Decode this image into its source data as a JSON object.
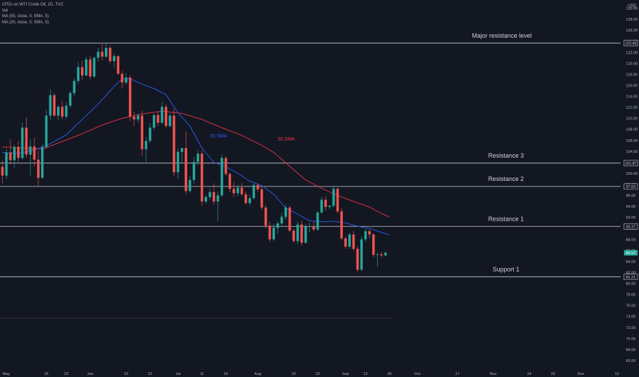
{
  "legend": {
    "symbol": "CFDs on WTI Crude Oil, 1D, TVC",
    "volume": "Vol",
    "ma50": "MA (50, close, 0, SMA, 5)",
    "ma20": "MA (20, close, 0, SMA, 5)"
  },
  "colors": {
    "background": "#131722",
    "up": "#26a69a",
    "down": "#ef5350",
    "sma20": "#2962ff",
    "sma50": "#f23645",
    "level_line": "#d1d4dc",
    "text": "#d1d4dc"
  },
  "chart_data": {
    "type": "candlestick",
    "currency_label": "USD",
    "y_ticks": [
      66,
      68,
      70,
      72,
      74,
      76,
      78,
      80,
      82,
      84,
      86,
      88,
      90,
      92,
      94,
      96,
      98,
      100,
      102,
      104,
      106,
      108,
      110,
      112,
      114,
      116,
      118,
      120,
      122,
      124,
      126,
      128,
      130
    ],
    "y_tick_labels": [
      "66.00",
      "68.00",
      "70.00",
      "72.00",
      "74.00",
      "76.00",
      "78.00",
      "80.00",
      "82.00",
      "84.00",
      "86.00",
      "88.00",
      "90.00",
      "92.00",
      "94.00",
      "96.00",
      "98.00",
      "100.00",
      "102.00",
      "104.00",
      "106.00",
      "108.00",
      "110.00",
      "112.00",
      "114.00",
      "116.00",
      "118.00",
      "120.00",
      "122.00",
      "124.00",
      "126.00",
      "128.00",
      "130.00"
    ],
    "ylim": [
      64.5,
      131.5
    ],
    "x_tick_labels": [
      "May",
      "16",
      "23",
      "Jun",
      "13",
      "21",
      "Jul",
      "11",
      "19",
      "Aug",
      "15",
      "23",
      "Sep",
      "12",
      "20",
      "Oct",
      "17",
      "Nov",
      "14",
      "22",
      "Dec",
      "12"
    ],
    "x_tick_index": [
      1,
      11,
      16,
      22,
      31,
      37,
      44,
      50,
      56,
      64,
      73,
      79,
      86,
      91,
      97,
      104,
      114,
      123,
      132,
      138,
      145,
      154
    ],
    "last_bar_index": 97,
    "candles": [
      [
        101.2,
        102.3,
        98.2,
        99.6
      ],
      [
        99.6,
        104.5,
        99.0,
        103.8
      ],
      [
        103.8,
        106.2,
        101.6,
        102.4
      ],
      [
        102.4,
        105.2,
        101.0,
        104.8
      ],
      [
        104.8,
        105.9,
        102.1,
        102.8
      ],
      [
        102.8,
        109.2,
        102.5,
        108.3
      ],
      [
        108.3,
        110.2,
        102.8,
        103.4
      ],
      [
        103.4,
        106.2,
        99.6,
        104.9
      ],
      [
        104.9,
        106.5,
        101.2,
        102.5
      ],
      [
        102.5,
        104.1,
        97.6,
        99.2
      ],
      [
        99.2,
        105.3,
        99.0,
        104.8
      ],
      [
        104.8,
        111.5,
        104.5,
        110.5
      ],
      [
        110.5,
        115.3,
        109.8,
        114.2
      ],
      [
        114.2,
        114.6,
        110.3,
        110.5
      ],
      [
        110.5,
        112.4,
        109.6,
        112.1
      ],
      [
        112.1,
        113.2,
        109.8,
        110.3
      ],
      [
        110.3,
        112.9,
        109.9,
        112.3
      ],
      [
        112.3,
        114.9,
        112.0,
        114.6
      ],
      [
        114.6,
        117.3,
        114.1,
        116.8
      ],
      [
        116.8,
        120.2,
        116.3,
        119.3
      ],
      [
        119.3,
        120.5,
        116.9,
        117.8
      ],
      [
        117.8,
        121.2,
        117.6,
        120.7
      ],
      [
        120.7,
        121.4,
        117.1,
        117.6
      ],
      [
        117.6,
        121.2,
        117.4,
        121.0
      ],
      [
        121.0,
        122.8,
        120.3,
        122.1
      ],
      [
        122.1,
        123.7,
        120.5,
        121.2
      ],
      [
        121.2,
        123.8,
        121.0,
        122.8
      ],
      [
        122.8,
        123.2,
        120.0,
        120.4
      ],
      [
        120.4,
        121.8,
        119.2,
        121.3
      ],
      [
        121.3,
        121.5,
        117.9,
        118.1
      ],
      [
        118.1,
        118.6,
        115.4,
        116.5
      ],
      [
        116.5,
        118.2,
        116.1,
        117.4
      ],
      [
        117.4,
        117.9,
        109.5,
        110.3
      ],
      [
        110.3,
        111.2,
        108.6,
        109.8
      ],
      [
        109.8,
        110.9,
        109.2,
        110.5
      ],
      [
        110.5,
        111.4,
        103.2,
        104.4
      ],
      [
        104.4,
        106.6,
        102.1,
        105.9
      ],
      [
        105.9,
        109.1,
        105.5,
        108.3
      ],
      [
        108.3,
        110.8,
        107.9,
        110.6
      ],
      [
        110.6,
        111.2,
        108.6,
        109.2
      ],
      [
        109.2,
        113.0,
        108.9,
        112.1
      ],
      [
        112.1,
        112.6,
        108.3,
        108.6
      ],
      [
        108.6,
        110.9,
        108.4,
        110.5
      ],
      [
        110.5,
        111.8,
        99.5,
        100.2
      ],
      [
        100.2,
        104.5,
        99.0,
        103.9
      ],
      [
        103.9,
        104.6,
        101.8,
        104.6
      ],
      [
        104.6,
        107.6,
        96.2,
        96.8
      ],
      [
        96.8,
        99.6,
        96.5,
        98.8
      ],
      [
        98.8,
        102.9,
        98.1,
        102.1
      ],
      [
        102.1,
        104.2,
        101.5,
        103.6
      ],
      [
        103.6,
        104.2,
        94.1,
        94.9
      ],
      [
        94.9,
        96.1,
        94.5,
        95.7
      ],
      [
        95.7,
        97.2,
        95.2,
        96.6
      ],
      [
        96.6,
        98.2,
        94.3,
        94.9
      ],
      [
        94.9,
        96.7,
        91.3,
        96.0
      ],
      [
        96.0,
        103.4,
        95.7,
        102.8
      ],
      [
        102.8,
        103.1,
        99.6,
        99.9
      ],
      [
        99.9,
        100.1,
        96.6,
        97.2
      ],
      [
        97.2,
        98.4,
        95.7,
        96.4
      ],
      [
        96.4,
        97.9,
        95.8,
        97.4
      ],
      [
        97.4,
        98.3,
        95.8,
        96.2
      ],
      [
        96.2,
        96.7,
        94.3,
        94.6
      ],
      [
        94.6,
        96.2,
        94.1,
        95.5
      ],
      [
        95.5,
        98.2,
        95.2,
        97.9
      ],
      [
        97.9,
        98.0,
        96.5,
        97.1
      ],
      [
        97.1,
        97.5,
        93.4,
        93.8
      ],
      [
        93.8,
        94.2,
        90.0,
        90.5
      ],
      [
        90.5,
        91.2,
        87.6,
        88.0
      ],
      [
        88.0,
        90.9,
        87.7,
        90.1
      ],
      [
        90.1,
        91.3,
        89.0,
        90.9
      ],
      [
        90.9,
        92.8,
        90.3,
        92.1
      ],
      [
        92.1,
        94.4,
        91.6,
        93.8
      ],
      [
        93.8,
        94.1,
        89.3,
        89.6
      ],
      [
        89.6,
        89.9,
        87.4,
        87.7
      ],
      [
        87.7,
        91.3,
        87.1,
        90.7
      ],
      [
        90.7,
        91.4,
        86.9,
        87.4
      ],
      [
        87.4,
        90.8,
        87.2,
        90.3
      ],
      [
        90.3,
        91.1,
        89.3,
        90.4
      ],
      [
        90.4,
        91.2,
        89.5,
        89.8
      ],
      [
        89.8,
        93.1,
        89.6,
        92.9
      ],
      [
        92.9,
        95.7,
        92.6,
        95.2
      ],
      [
        95.2,
        95.8,
        93.2,
        93.9
      ],
      [
        93.9,
        94.3,
        93.5,
        94.1
      ],
      [
        94.1,
        97.8,
        93.8,
        97.2
      ],
      [
        97.2,
        97.4,
        92.7,
        93.1
      ],
      [
        93.1,
        93.7,
        87.8,
        88.2
      ],
      [
        88.2,
        88.6,
        86.3,
        86.7
      ],
      [
        86.7,
        89.2,
        86.3,
        88.9
      ],
      [
        88.9,
        89.5,
        85.9,
        86.3
      ],
      [
        86.3,
        86.8,
        82.1,
        82.5
      ],
      [
        82.5,
        88.6,
        82.3,
        88.0
      ],
      [
        88.0,
        89.9,
        87.6,
        89.5
      ],
      [
        89.5,
        89.8,
        88.2,
        88.9
      ],
      [
        88.9,
        89.1,
        84.8,
        85.2
      ],
      [
        85.2,
        85.6,
        83.1,
        85.3
      ],
      [
        85.3,
        85.7,
        84.8,
        85.1
      ],
      [
        85.1,
        85.8,
        84.9,
        85.6
      ]
    ],
    "sma20": [
      [
        0,
        103.8
      ],
      [
        4,
        103.6
      ],
      [
        8,
        104.2
      ],
      [
        12,
        105.4
      ],
      [
        16,
        107.0
      ],
      [
        20,
        109.8
      ],
      [
        24,
        112.6
      ],
      [
        28,
        115.8
      ],
      [
        30,
        117.2
      ],
      [
        32,
        117.2
      ],
      [
        35,
        116.2
      ],
      [
        38,
        115.4
      ],
      [
        41,
        114.3
      ],
      [
        44,
        111.0
      ],
      [
        47,
        108.6
      ],
      [
        50,
        104.6
      ],
      [
        53,
        102.0
      ],
      [
        56,
        101.2
      ],
      [
        59,
        100.0
      ],
      [
        62,
        98.6
      ],
      [
        65,
        97.8
      ],
      [
        68,
        96.2
      ],
      [
        71,
        93.7
      ],
      [
        74,
        92.6
      ],
      [
        77,
        91.4
      ],
      [
        80,
        91.2
      ],
      [
        83,
        91.3
      ],
      [
        86,
        91.0
      ],
      [
        89,
        90.4
      ],
      [
        92,
        90.0
      ],
      [
        95,
        89.3
      ],
      [
        97,
        88.8
      ]
    ],
    "sma50": [
      [
        0,
        104.8
      ],
      [
        10,
        104.4
      ],
      [
        15,
        105.8
      ],
      [
        20,
        107.2
      ],
      [
        25,
        108.8
      ],
      [
        30,
        110.0
      ],
      [
        35,
        110.8
      ],
      [
        40,
        111.3
      ],
      [
        45,
        110.9
      ],
      [
        50,
        109.8
      ],
      [
        55,
        108.3
      ],
      [
        60,
        106.9
      ],
      [
        65,
        105.1
      ],
      [
        68,
        103.8
      ],
      [
        72,
        101.3
      ],
      [
        76,
        98.8
      ],
      [
        80,
        97.3
      ],
      [
        84,
        96.0
      ],
      [
        88,
        94.9
      ],
      [
        92,
        93.9
      ],
      [
        95,
        92.7
      ],
      [
        97,
        92.1
      ]
    ],
    "series": [
      {
        "name": "20 SMA",
        "label_at": [
          52,
          106.5
        ]
      },
      {
        "name": "50 SMA",
        "label_at": [
          69,
          106.0
        ]
      }
    ],
    "levels": [
      {
        "name": "Major resistance level",
        "price": 123.66,
        "badge": "123.66",
        "badge_style": "outline"
      },
      {
        "name": "Resistance 3",
        "price": 101.87,
        "badge": "101.87",
        "badge_style": "outline"
      },
      {
        "name": "Resistance 2",
        "price": 97.63,
        "badge": "97.63",
        "badge_style": "outline"
      },
      {
        "name": "Resistance 1",
        "price": 90.37,
        "badge": "90.37",
        "badge_style": "outline"
      },
      {
        "name": "Support 1",
        "price": 81.21,
        "badge": "81.21",
        "badge_style": "outline"
      }
    ],
    "last_price": {
      "value": 85.57,
      "badge": "85.57"
    },
    "dashed_line": {
      "price": 73.7,
      "to_index": 97
    }
  }
}
